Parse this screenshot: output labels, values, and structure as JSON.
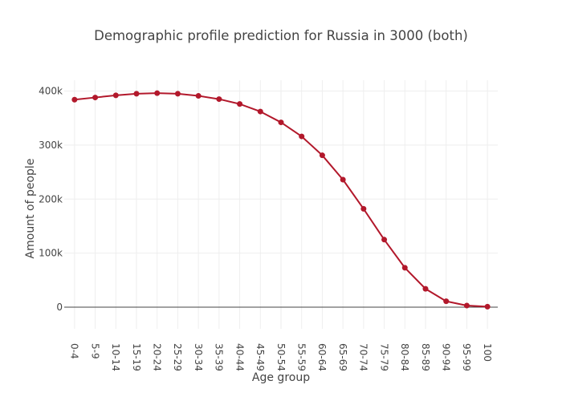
{
  "chart_data": {
    "type": "line",
    "title": "Demographic profile prediction for Russia in 3000 (both)",
    "xlabel": "Age group",
    "ylabel": "Amount of people",
    "categories": [
      "0-4",
      "5-9",
      "10-14",
      "15-19",
      "20-24",
      "25-29",
      "30-34",
      "35-39",
      "40-44",
      "45-49",
      "50-54",
      "55-59",
      "60-64",
      "65-69",
      "70-74",
      "75-79",
      "80-84",
      "85-89",
      "90-94",
      "95-99",
      "100"
    ],
    "y_ticks": [
      {
        "value": 0,
        "label": "0"
      },
      {
        "value": 100000,
        "label": "100k"
      },
      {
        "value": 200000,
        "label": "200k"
      },
      {
        "value": 300000,
        "label": "300k"
      },
      {
        "value": 400000,
        "label": "400k"
      }
    ],
    "ylim": [
      -40000,
      420000
    ],
    "grid": true,
    "series": [
      {
        "color": "#b2182b",
        "values": [
          384000,
          388000,
          392000,
          395000,
          396000,
          395000,
          391000,
          385000,
          376000,
          362000,
          342000,
          316000,
          281000,
          236000,
          182000,
          125000,
          73000,
          34000,
          11000,
          3000,
          1000
        ]
      }
    ]
  }
}
